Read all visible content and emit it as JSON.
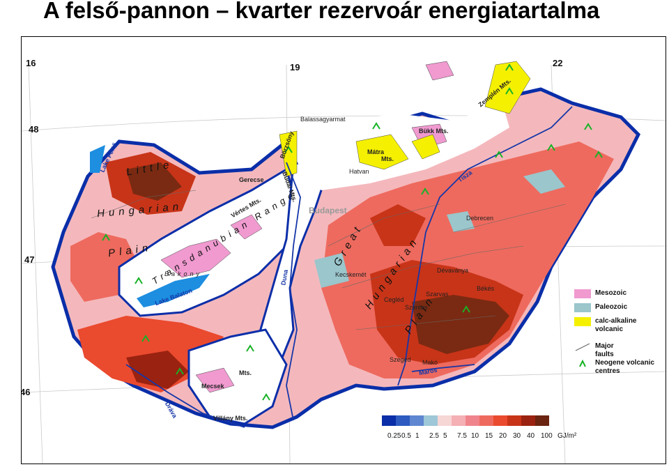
{
  "title": "A felső-pannon – kvarter rezervoár energiatartalma",
  "grid": {
    "lon": [
      "16",
      "19",
      "22"
    ],
    "lat": [
      "48",
      "47",
      "46"
    ]
  },
  "regions": {
    "little_hungarian_plain": [
      "Little",
      "Hungarian",
      "Plain"
    ],
    "transdanubian_range": [
      "Transdanubian Range"
    ],
    "great_hungarian_plain": [
      "Great",
      "Hungarian",
      "Plain"
    ]
  },
  "places": [
    "Balassagyarmat",
    "Bükk Mts.",
    "Mátra",
    "Mts.",
    "Hatvan",
    "Budapest",
    "Gerecse",
    "Vértes Mts.",
    "Börzsöny",
    "Budai Mts.",
    "Zemplén Mts.",
    "Bakony",
    "Mecsek",
    "Mts.",
    "Villány Mts.",
    "Kecskemét",
    "Szeged",
    "Makó",
    "Békés",
    "Szarvas",
    "Cegléd",
    "Szentes",
    "Dévaványa",
    "Debrecen"
  ],
  "water": [
    "Lake Fertő",
    "Lake Balaton",
    "Duna",
    "Tisza",
    "Dráva",
    "Maros"
  ],
  "legend": [
    {
      "label": "Mesozoic",
      "color": "#f09ad0"
    },
    {
      "label": "Paleozoic",
      "color": "#9ac6cc"
    },
    {
      "label": "calc-alkaline volcanic",
      "color": "#f4f000"
    },
    {
      "label": "Major faults",
      "icon": "fault-line-icon"
    },
    {
      "label": "Neogene volcanic centres",
      "icon": "volcano-caret-icon"
    }
  ],
  "scale": {
    "colors": [
      "#0a2ea8",
      "#2d5bbf",
      "#5f86d0",
      "#9ec7d8",
      "#f7d6d6",
      "#f4b0b4",
      "#f0848c",
      "#ee6a5e",
      "#ea4a2e",
      "#c83418",
      "#9a2210",
      "#6a2410"
    ],
    "ticks": [
      "0.25",
      "0.5",
      "1",
      "2.5",
      "5",
      "7.5",
      "10",
      "15",
      "20",
      "30",
      "40",
      "100"
    ],
    "unit": "GJ/m²"
  }
}
